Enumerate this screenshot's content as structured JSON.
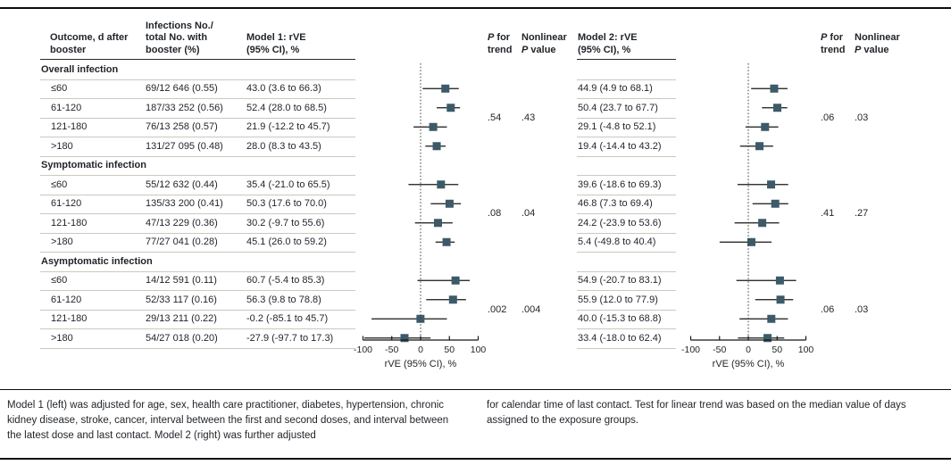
{
  "colors": {
    "marker": "#3d5a68",
    "ci_line": "#161616",
    "text": "#1f2328",
    "separator": "#ccc8c0",
    "rule": "#0d0d0d"
  },
  "headers": {
    "outcome": [
      "Outcome, d after",
      "booster"
    ],
    "infections": [
      "Infections No./",
      "total No. with",
      "booster (%)"
    ],
    "model1": [
      "Model 1: rVE",
      "(95% CI), %"
    ],
    "model2": [
      "Model 2: rVE",
      "(95% CI), %"
    ],
    "p_trend": {
      "p": "P",
      "rest": " for",
      "line2": "trend"
    },
    "nonlinear": {
      "line1": "Nonlinear",
      "p": "P",
      "rest": " value"
    }
  },
  "axis": {
    "range": [
      -100,
      100
    ],
    "ticks": [
      -100,
      -50,
      0,
      50,
      100
    ],
    "tick_labels": [
      "-100",
      "-50",
      "0",
      "50",
      "100"
    ],
    "label": "rVE (95% CI), %",
    "reference_line": 0
  },
  "sections": [
    {
      "label": "Overall infection",
      "rows": [
        {
          "outcome": "≤60",
          "infections": "69/12 646 (0.55)",
          "model1_text": "43.0 (3.6 to 66.3)",
          "m1": [
            43.0,
            3.6,
            66.3
          ],
          "model2_text": "44.9 (4.9 to 68.1)",
          "m2": [
            44.9,
            4.9,
            68.1
          ]
        },
        {
          "outcome": "61-120",
          "infections": "187/33 252 (0.56)",
          "model1_text": "52.4 (28.0 to 68.5)",
          "m1": [
            52.4,
            28.0,
            68.5
          ],
          "model2_text": "50.4 (23.7 to 67.7)",
          "m2": [
            50.4,
            23.7,
            67.7
          ]
        },
        {
          "outcome": "121-180",
          "infections": "76/13 258 (0.57)",
          "model1_text": "21.9 (-12.2 to 45.7)",
          "m1": [
            21.9,
            -12.2,
            45.7
          ],
          "model2_text": "29.1 (-4.8 to 52.1)",
          "m2": [
            29.1,
            -4.8,
            52.1
          ]
        },
        {
          "outcome": ">180",
          "infections": "131/27 095 (0.48)",
          "model1_text": "28.0 (8.3 to 43.5)",
          "m1": [
            28.0,
            8.3,
            43.5
          ],
          "model2_text": "19.4 (-14.4 to 43.2)",
          "m2": [
            19.4,
            -14.4,
            43.2
          ]
        }
      ],
      "p_model1": {
        "trend": ".54",
        "nonlinear": ".43"
      },
      "p_model2": {
        "trend": ".06",
        "nonlinear": ".03"
      }
    },
    {
      "label": "Symptomatic infection",
      "rows": [
        {
          "outcome": "≤60",
          "infections": "55/12 632 (0.44)",
          "model1_text": "35.4 (-21.0 to 65.5)",
          "m1": [
            35.4,
            -21.0,
            65.5
          ],
          "model2_text": "39.6 (-18.6 to 69.3)",
          "m2": [
            39.6,
            -18.6,
            69.3
          ]
        },
        {
          "outcome": "61-120",
          "infections": "135/33 200 (0.41)",
          "model1_text": "50.3 (17.6 to 70.0)",
          "m1": [
            50.3,
            17.6,
            70.0
          ],
          "model2_text": "46.8 (7.3 to 69.4)",
          "m2": [
            46.8,
            7.3,
            69.4
          ]
        },
        {
          "outcome": "121-180",
          "infections": "47/13 229 (0.36)",
          "model1_text": "30.2 (-9.7 to 55.6)",
          "m1": [
            30.2,
            -9.7,
            55.6
          ],
          "model2_text": "24.2 (-23.9 to 53.6)",
          "m2": [
            24.2,
            -23.9,
            53.6
          ]
        },
        {
          "outcome": ">180",
          "infections": "77/27 041 (0.28)",
          "model1_text": "45.1 (26.0 to 59.2)",
          "m1": [
            45.1,
            26.0,
            59.2
          ],
          "model2_text": "5.4 (-49.8 to 40.4)",
          "m2": [
            5.4,
            -49.8,
            40.4
          ]
        }
      ],
      "p_model1": {
        "trend": ".08",
        "nonlinear": ".04"
      },
      "p_model2": {
        "trend": ".41",
        "nonlinear": ".27"
      }
    },
    {
      "label": "Asymptomatic infection",
      "rows": [
        {
          "outcome": "≤60",
          "infections": "14/12 591 (0.11)",
          "model1_text": "60.7 (-5.4 to 85.3)",
          "m1": [
            60.7,
            -5.4,
            85.3
          ],
          "model2_text": "54.9 (-20.7 to 83.1)",
          "m2": [
            54.9,
            -20.7,
            83.1
          ]
        },
        {
          "outcome": "61-120",
          "infections": "52/33 117 (0.16)",
          "model1_text": "56.3 (9.8 to 78.8)",
          "m1": [
            56.3,
            9.8,
            78.8
          ],
          "model2_text": "55.9 (12.0 to 77.9)",
          "m2": [
            55.9,
            12.0,
            77.9
          ]
        },
        {
          "outcome": "121-180",
          "infections": "29/13 211 (0.22)",
          "model1_text": "-0.2 (-85.1 to 45.7)",
          "m1": [
            -0.2,
            -85.1,
            45.7
          ],
          "model2_text": "40.0 (-15.3 to 68.8)",
          "m2": [
            40.0,
            -15.3,
            68.8
          ]
        },
        {
          "outcome": ">180",
          "infections": "54/27 018 (0.20)",
          "model1_text": "-27.9 (-97.7 to 17.3)",
          "m1": [
            -27.9,
            -97.7,
            17.3
          ],
          "model2_text": "33.4 (-18.0 to 62.4)",
          "m2": [
            33.4,
            -18.0,
            62.4
          ]
        }
      ],
      "p_model1": {
        "trend": ".002",
        "nonlinear": ".004"
      },
      "p_model2": {
        "trend": ".06",
        "nonlinear": ".03"
      }
    }
  ],
  "footnote": {
    "left": "Model 1 (left) was adjusted for age, sex, health care practitioner, diabetes, hypertension, chronic kidney disease, stroke, cancer, interval between the first and second doses, and interval between the latest dose and last contact. Model 2 (right) was further adjusted",
    "right": "for calendar time of last contact. Test for linear trend was based on the median value of days assigned to the exposure groups."
  },
  "chart_data": [
    {
      "type": "scatter",
      "title": "Model 1: rVE (95% CI), %",
      "xlabel": "rVE (95% CI), %",
      "xlim": [
        -100,
        100
      ],
      "xticks": [
        -100,
        -50,
        0,
        50,
        100
      ],
      "reference_line_x": 0,
      "grid": false,
      "groups": [
        {
          "group": "Overall infection",
          "points": [
            {
              "label": "≤60",
              "est": 43.0,
              "ci": [
                3.6,
                66.3
              ]
            },
            {
              "label": "61-120",
              "est": 52.4,
              "ci": [
                28.0,
                68.5
              ]
            },
            {
              "label": "121-180",
              "est": 21.9,
              "ci": [
                -12.2,
                45.7
              ]
            },
            {
              "label": ">180",
              "est": 28.0,
              "ci": [
                8.3,
                43.5
              ]
            }
          ],
          "p_trend": ".54",
          "nonlinear_p": ".43"
        },
        {
          "group": "Symptomatic infection",
          "points": [
            {
              "label": "≤60",
              "est": 35.4,
              "ci": [
                -21.0,
                65.5
              ]
            },
            {
              "label": "61-120",
              "est": 50.3,
              "ci": [
                17.6,
                70.0
              ]
            },
            {
              "label": "121-180",
              "est": 30.2,
              "ci": [
                -9.7,
                55.6
              ]
            },
            {
              "label": ">180",
              "est": 45.1,
              "ci": [
                26.0,
                59.2
              ]
            }
          ],
          "p_trend": ".08",
          "nonlinear_p": ".04"
        },
        {
          "group": "Asymptomatic infection",
          "points": [
            {
              "label": "≤60",
              "est": 60.7,
              "ci": [
                -5.4,
                85.3
              ]
            },
            {
              "label": "61-120",
              "est": 56.3,
              "ci": [
                9.8,
                78.8
              ]
            },
            {
              "label": "121-180",
              "est": -0.2,
              "ci": [
                -85.1,
                45.7
              ]
            },
            {
              "label": ">180",
              "est": -27.9,
              "ci": [
                -97.7,
                17.3
              ]
            }
          ],
          "p_trend": ".002",
          "nonlinear_p": ".004"
        }
      ]
    },
    {
      "type": "scatter",
      "title": "Model 2: rVE (95% CI), %",
      "xlabel": "rVE (95% CI), %",
      "xlim": [
        -100,
        100
      ],
      "xticks": [
        -100,
        -50,
        0,
        50,
        100
      ],
      "reference_line_x": 0,
      "grid": false,
      "groups": [
        {
          "group": "Overall infection",
          "points": [
            {
              "label": "≤60",
              "est": 44.9,
              "ci": [
                4.9,
                68.1
              ]
            },
            {
              "label": "61-120",
              "est": 50.4,
              "ci": [
                23.7,
                67.7
              ]
            },
            {
              "label": "121-180",
              "est": 29.1,
              "ci": [
                -4.8,
                52.1
              ]
            },
            {
              "label": ">180",
              "est": 19.4,
              "ci": [
                -14.4,
                43.2
              ]
            }
          ],
          "p_trend": ".06",
          "nonlinear_p": ".03"
        },
        {
          "group": "Symptomatic infection",
          "points": [
            {
              "label": "≤60",
              "est": 39.6,
              "ci": [
                -18.6,
                69.3
              ]
            },
            {
              "label": "61-120",
              "est": 46.8,
              "ci": [
                7.3,
                69.4
              ]
            },
            {
              "label": "121-180",
              "est": 24.2,
              "ci": [
                -23.9,
                53.6
              ]
            },
            {
              "label": ">180",
              "est": 5.4,
              "ci": [
                -49.8,
                40.4
              ]
            }
          ],
          "p_trend": ".41",
          "nonlinear_p": ".27"
        },
        {
          "group": "Asymptomatic infection",
          "points": [
            {
              "label": "≤60",
              "est": 54.9,
              "ci": [
                -20.7,
                83.1
              ]
            },
            {
              "label": "61-120",
              "est": 55.9,
              "ci": [
                12.0,
                77.9
              ]
            },
            {
              "label": "121-180",
              "est": 40.0,
              "ci": [
                -15.3,
                68.8
              ]
            },
            {
              "label": ">180",
              "est": 33.4,
              "ci": [
                -18.0,
                62.4
              ]
            }
          ],
          "p_trend": ".06",
          "nonlinear_p": ".03"
        }
      ]
    }
  ]
}
